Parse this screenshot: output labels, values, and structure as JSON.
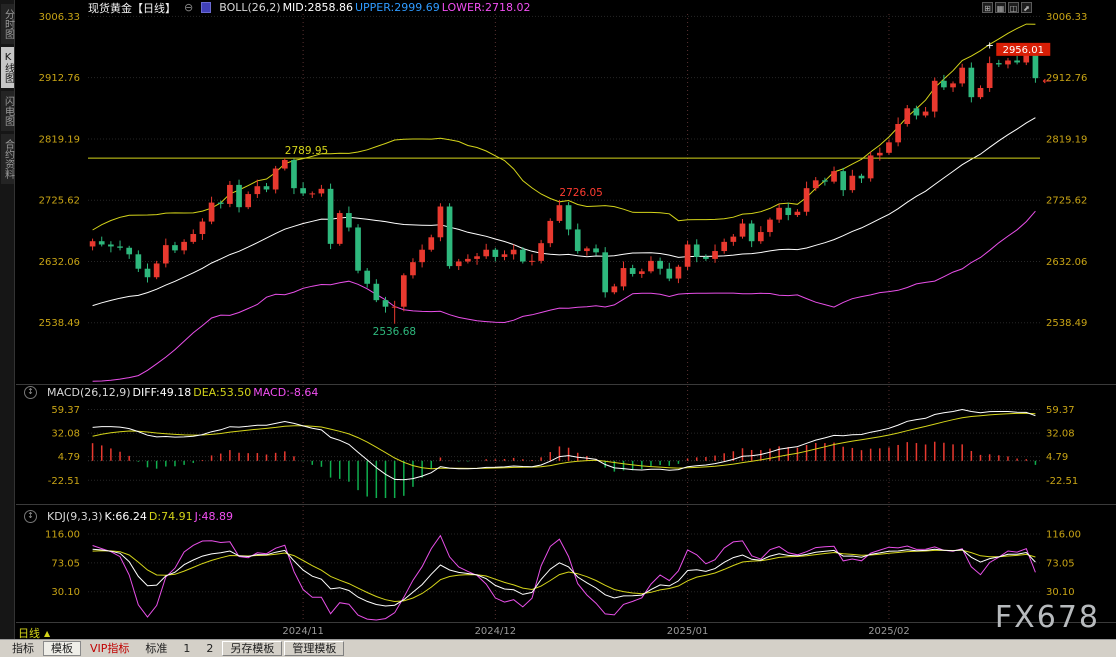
{
  "header": {
    "title": "现货黄金【日线】",
    "collapse_icon": "⊖",
    "boll_legend": [
      {
        "text": "BOLL(26,2)",
        "color": "#d8d8d8"
      },
      {
        "text": "MID:2858.86",
        "color": "#ffffff"
      },
      {
        "text": "UPPER:2999.69",
        "color": "#2f9bff"
      },
      {
        "text": "LOWER:2718.02",
        "color": "#f24ff2"
      }
    ],
    "window_icons": [
      {
        "name": "new-window-icon",
        "glyph": "⊞"
      },
      {
        "name": "grid-layout-icon",
        "glyph": "▦"
      },
      {
        "name": "split-view-icon",
        "glyph": "◫"
      },
      {
        "name": "expand-icon",
        "glyph": "⬈"
      }
    ]
  },
  "sidebar": {
    "items": [
      {
        "name": "tab-time-chart",
        "label": "分时图",
        "active": false
      },
      {
        "name": "tab-kline-chart",
        "label": "K线图",
        "active": true
      },
      {
        "name": "tab-lightning-chart",
        "label": "闪电图",
        "active": false
      },
      {
        "name": "tab-contract-info",
        "label": "合约资料",
        "active": false
      }
    ]
  },
  "macd_legend": [
    {
      "text": "MACD(26,12,9)",
      "color": "#d8d8d8"
    },
    {
      "text": "DIFF:49.18",
      "color": "#ffffff"
    },
    {
      "text": "DEA:53.50",
      "color": "#d4d41a"
    },
    {
      "text": "MACD:-8.64",
      "color": "#f24ff2"
    }
  ],
  "kdj_legend": [
    {
      "text": "KDJ(9,3,3)",
      "color": "#d8d8d8"
    },
    {
      "text": "K:66.24",
      "color": "#ffffff"
    },
    {
      "text": "D:74.91",
      "color": "#d4d41a"
    },
    {
      "text": "J:48.89",
      "color": "#f24ff2"
    }
  ],
  "period": {
    "label": "日线",
    "arrow": "▲"
  },
  "watermark": "FX678",
  "toolbar": {
    "items": [
      {
        "name": "tab-indicators",
        "label": "指标"
      },
      {
        "name": "tab-templates",
        "label": "模板",
        "style": "active"
      },
      {
        "name": "tab-vip-indicators",
        "label": "VIP指标",
        "color": "#c00000"
      },
      {
        "name": "tab-standard",
        "label": "标准"
      },
      {
        "name": "tab-1",
        "label": "1"
      },
      {
        "name": "tab-2",
        "label": "2"
      },
      {
        "name": "save-template-button",
        "label": "另存模板",
        "style": "button"
      },
      {
        "name": "manage-template-button",
        "label": "管理模板",
        "style": "button"
      }
    ]
  },
  "chart_data": {
    "type": "candlestick",
    "symbol": "现货黄金",
    "period": "日线",
    "main": {
      "ylim": [
        2448,
        3010
      ],
      "ticks": [
        3006.33,
        2912.76,
        2819.19,
        2725.62,
        2632.06,
        2538.49
      ],
      "hline": 2789.95
    },
    "x_ticks": [
      {
        "index": 23,
        "label": "2024/11"
      },
      {
        "index": 44,
        "label": "2024/12"
      },
      {
        "index": 65,
        "label": "2025/01"
      },
      {
        "index": 87,
        "label": "2025/02"
      }
    ],
    "boll": {
      "period": 26,
      "width": 2,
      "mid": 2858.86,
      "upper": 2999.69,
      "lower": 2718.02
    },
    "macd": {
      "params": [
        26,
        12,
        9
      ],
      "diff": 49.18,
      "dea": 53.5,
      "macd": -8.64,
      "ticks": [
        59.37,
        32.08,
        4.79,
        -22.51
      ],
      "ylim": [
        -43,
        68
      ]
    },
    "kdj": {
      "params": [
        9,
        3,
        3
      ],
      "k": 66.24,
      "d": 74.91,
      "j": 48.89,
      "ticks": [
        116.0,
        73.05,
        30.1
      ],
      "ylim": [
        -12,
        128
      ]
    },
    "annotations": [
      {
        "type": "text",
        "index": 21,
        "price": 2789.95,
        "label": "2789.95",
        "color": "#d4d41a",
        "placement": "above"
      },
      {
        "type": "text",
        "index": 51,
        "price": 2726.05,
        "label": "2726.05",
        "color": "#ff3b30",
        "placement": "above"
      },
      {
        "type": "text",
        "index": 33,
        "price": 2536.68,
        "label": "2536.68",
        "color": "#2eb87d",
        "placement": "below"
      },
      {
        "type": "tag",
        "index": 102,
        "price": 2956.01,
        "label": "2956.01",
        "color": "#ffffff",
        "bg": "#d81e06"
      },
      {
        "type": "arrow",
        "index": 103,
        "price": 2908,
        "label": "←",
        "color": "#ff3b30"
      },
      {
        "type": "cross",
        "index": 98,
        "price": 2962,
        "label": "+",
        "color": "#ffffff"
      }
    ],
    "colors": {
      "up": "#e8392f",
      "down": "#2eb87d",
      "boll_upper": "#d4d41a",
      "boll_mid": "#ffffff",
      "boll_lower": "#e84fe8",
      "diff": "#ffffff",
      "dea": "#d4d41a",
      "k": "#ffffff",
      "d": "#d4d41a",
      "j": "#e84fe8",
      "hline": "#d4d41a",
      "axis_text": "#c8a415",
      "month_text": "#9a9a9a",
      "grid": "#262626",
      "vgrid": "#5a3232",
      "macd_pos": "#e8392f",
      "macd_neg": "#0fae4e"
    },
    "lead_in_candles": [
      [
        2503,
        2509,
        2493,
        2499
      ],
      [
        2499,
        2505,
        2487,
        2493
      ],
      [
        2493,
        2500,
        2488,
        2494
      ],
      [
        2494,
        2503,
        2488,
        2497
      ],
      [
        2497,
        2503,
        2491,
        2497
      ],
      [
        2497,
        2509,
        2491,
        2503
      ],
      [
        2503,
        2522,
        2497,
        2516
      ],
      [
        2516,
        2522,
        2505,
        2511
      ],
      [
        2511,
        2564,
        2505,
        2558
      ],
      [
        2558,
        2583,
        2552,
        2577
      ],
      [
        2577,
        2588,
        2571,
        2582
      ],
      [
        2582,
        2588,
        2563,
        2569
      ],
      [
        2569,
        2578,
        2563,
        2572
      ],
      [
        2572,
        2578,
        2553,
        2559
      ],
      [
        2559,
        2593,
        2553,
        2587
      ],
      [
        2587,
        2628,
        2581,
        2622
      ],
      [
        2622,
        2635,
        2616,
        2629
      ],
      [
        2629,
        2635,
        2617,
        2623
      ],
      [
        2623,
        2655,
        2617,
        2649
      ],
      [
        2649,
        2664,
        2643,
        2658
      ]
    ],
    "candles": [
      [
        2655,
        2667,
        2649,
        2663
      ],
      [
        2663,
        2670,
        2655,
        2658
      ],
      [
        2658,
        2663,
        2646,
        2655
      ],
      [
        2655,
        2664,
        2649,
        2653
      ],
      [
        2653,
        2656,
        2636,
        2643
      ],
      [
        2643,
        2649,
        2616,
        2621
      ],
      [
        2621,
        2629,
        2600,
        2608
      ],
      [
        2608,
        2633,
        2605,
        2629
      ],
      [
        2629,
        2667,
        2623,
        2657
      ],
      [
        2657,
        2662,
        2645,
        2649
      ],
      [
        2649,
        2666,
        2643,
        2662
      ],
      [
        2662,
        2681,
        2659,
        2674
      ],
      [
        2674,
        2698,
        2665,
        2693
      ],
      [
        2693,
        2731,
        2689,
        2722
      ],
      [
        2722,
        2725,
        2713,
        2720
      ],
      [
        2720,
        2755,
        2715,
        2749
      ],
      [
        2749,
        2757,
        2707,
        2715
      ],
      [
        2715,
        2739,
        2712,
        2735
      ],
      [
        2735,
        2757,
        2729,
        2747
      ],
      [
        2747,
        2752,
        2738,
        2742
      ],
      [
        2742,
        2778,
        2736,
        2774
      ],
      [
        2774,
        2790,
        2771,
        2787
      ],
      [
        2787,
        2789,
        2735,
        2744
      ],
      [
        2744,
        2753,
        2732,
        2736
      ],
      [
        2736,
        2739,
        2729,
        2736
      ],
      [
        2736,
        2749,
        2731,
        2743
      ],
      [
        2743,
        2751,
        2651,
        2659
      ],
      [
        2659,
        2710,
        2656,
        2706
      ],
      [
        2706,
        2716,
        2678,
        2684
      ],
      [
        2684,
        2689,
        2614,
        2618
      ],
      [
        2618,
        2622,
        2592,
        2598
      ],
      [
        2598,
        2605,
        2570,
        2573
      ],
      [
        2573,
        2578,
        2554,
        2563
      ],
      [
        2563,
        2572,
        2537,
        2563
      ],
      [
        2563,
        2614,
        2556,
        2611
      ],
      [
        2611,
        2637,
        2606,
        2631
      ],
      [
        2631,
        2658,
        2623,
        2650
      ],
      [
        2650,
        2673,
        2647,
        2669
      ],
      [
        2669,
        2721,
        2663,
        2716
      ],
      [
        2716,
        2721,
        2621,
        2625
      ],
      [
        2625,
        2636,
        2619,
        2632
      ],
      [
        2632,
        2643,
        2629,
        2636
      ],
      [
        2636,
        2645,
        2627,
        2640
      ],
      [
        2640,
        2659,
        2636,
        2650
      ],
      [
        2650,
        2653,
        2632,
        2639
      ],
      [
        2639,
        2649,
        2634,
        2643
      ],
      [
        2643,
        2658,
        2635,
        2650
      ],
      [
        2650,
        2654,
        2629,
        2632
      ],
      [
        2632,
        2643,
        2626,
        2633
      ],
      [
        2633,
        2665,
        2629,
        2660
      ],
      [
        2660,
        2698,
        2654,
        2694
      ],
      [
        2694,
        2726,
        2691,
        2718
      ],
      [
        2718,
        2723,
        2672,
        2681
      ],
      [
        2681,
        2690,
        2644,
        2648
      ],
      [
        2648,
        2655,
        2641,
        2652
      ],
      [
        2652,
        2658,
        2641,
        2646
      ],
      [
        2646,
        2654,
        2577,
        2585
      ],
      [
        2585,
        2598,
        2582,
        2594
      ],
      [
        2594,
        2632,
        2588,
        2622
      ],
      [
        2622,
        2627,
        2609,
        2613
      ],
      [
        2613,
        2621,
        2607,
        2617
      ],
      [
        2617,
        2640,
        2614,
        2633
      ],
      [
        2633,
        2638,
        2612,
        2621
      ],
      [
        2621,
        2630,
        2602,
        2606
      ],
      [
        2606,
        2627,
        2599,
        2624
      ],
      [
        2624,
        2664,
        2619,
        2658
      ],
      [
        2658,
        2666,
        2631,
        2639
      ],
      [
        2639,
        2643,
        2633,
        2636
      ],
      [
        2636,
        2658,
        2630,
        2648
      ],
      [
        2648,
        2667,
        2644,
        2662
      ],
      [
        2662,
        2674,
        2656,
        2670
      ],
      [
        2670,
        2697,
        2667,
        2690
      ],
      [
        2690,
        2695,
        2654,
        2663
      ],
      [
        2663,
        2686,
        2659,
        2677
      ],
      [
        2677,
        2699,
        2670,
        2696
      ],
      [
        2696,
        2720,
        2691,
        2714
      ],
      [
        2714,
        2722,
        2695,
        2703
      ],
      [
        2703,
        2712,
        2700,
        2708
      ],
      [
        2708,
        2754,
        2702,
        2744
      ],
      [
        2744,
        2761,
        2740,
        2756
      ],
      [
        2756,
        2760,
        2748,
        2754
      ],
      [
        2754,
        2777,
        2751,
        2770
      ],
      [
        2770,
        2775,
        2732,
        2741
      ],
      [
        2741,
        2772,
        2737,
        2763
      ],
      [
        2763,
        2766,
        2752,
        2759
      ],
      [
        2759,
        2800,
        2754,
        2794
      ],
      [
        2794,
        2806,
        2786,
        2798
      ],
      [
        2798,
        2818,
        2795,
        2814
      ],
      [
        2814,
        2852,
        2808,
        2842
      ],
      [
        2842,
        2871,
        2838,
        2866
      ],
      [
        2866,
        2870,
        2849,
        2855
      ],
      [
        2855,
        2868,
        2852,
        2861
      ],
      [
        2861,
        2913,
        2852,
        2908
      ],
      [
        2908,
        2917,
        2894,
        2898
      ],
      [
        2898,
        2907,
        2891,
        2904
      ],
      [
        2904,
        2934,
        2899,
        2928
      ],
      [
        2928,
        2936,
        2875,
        2883
      ],
      [
        2883,
        2901,
        2880,
        2897
      ],
      [
        2897,
        2945,
        2891,
        2935
      ],
      [
        2935,
        2940,
        2929,
        2933
      ],
      [
        2933,
        2943,
        2927,
        2939
      ],
      [
        2939,
        2946,
        2933,
        2936
      ],
      [
        2936,
        2956,
        2932,
        2951
      ],
      [
        2951,
        2953,
        2905,
        2912
      ]
    ]
  }
}
